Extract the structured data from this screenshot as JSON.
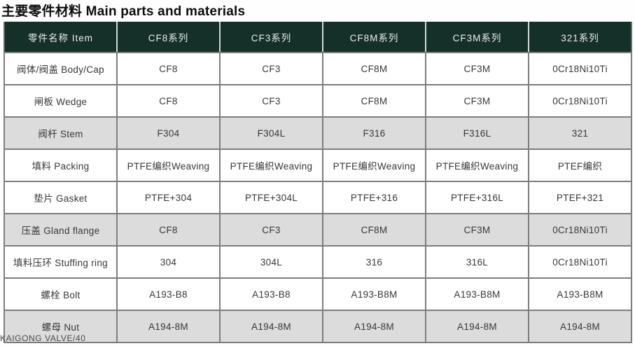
{
  "page": {
    "title": "主要零件材料 Main parts and materials",
    "footer": "KAIGONG VALVE/40"
  },
  "colors": {
    "header_bg": "#143029",
    "header_text": "#ececec",
    "shaded_row_bg": "#dcdcdc",
    "row_bg": "#ffffff",
    "grid_border": "#7d7d7d",
    "cell_text": "#383838"
  },
  "table": {
    "columns": [
      "零件名称 Item",
      "CF8系列",
      "CF3系列",
      "CF8M系列",
      "CF3M系列",
      "321系列"
    ],
    "rows": [
      {
        "item": "阀体/阀盖 Body/Cap",
        "values": [
          "CF8",
          "CF3",
          "CF8M",
          "CF3M",
          "0Cr18Ni10Ti"
        ],
        "shaded": false
      },
      {
        "item": "闸板 Wedge",
        "values": [
          "CF8",
          "CF3",
          "CF8M",
          "CF3M",
          "0Cr18Ni10Ti"
        ],
        "shaded": false
      },
      {
        "item": "阀杆 Stem",
        "values": [
          "F304",
          "F304L",
          "F316",
          "F316L",
          "321"
        ],
        "shaded": true
      },
      {
        "item": "填料 Packing",
        "values": [
          "PTFE编织Weaving",
          "PTFE编织Weaving",
          "PTFE编织Weaving",
          "PTFE编织Weaving",
          "PTEF编织"
        ],
        "shaded": false
      },
      {
        "item": "垫片 Gasket",
        "values": [
          "PTFE+304",
          "PTFE+304L",
          "PTFE+316",
          "PTFE+316L",
          "PTEF+321"
        ],
        "shaded": false
      },
      {
        "item": "压盖 Gland flange",
        "values": [
          "CF8",
          "CF3",
          "CF8M",
          "CF3M",
          "0Cr18Ni10Ti"
        ],
        "shaded": true
      },
      {
        "item": "填料压环 Stuffing ring",
        "values": [
          "304",
          "304L",
          "316",
          "316L",
          "0Cr18Ni10Ti"
        ],
        "shaded": false
      },
      {
        "item": "螺栓 Bolt",
        "values": [
          "A193-B8",
          "A193-B8",
          "A193-B8M",
          "A193-B8M",
          "A193-B8M"
        ],
        "shaded": false
      },
      {
        "item": "螺母 Nut",
        "values": [
          "A194-8M",
          "A194-8M",
          "A194-8M",
          "A194-8M",
          "A194-8M"
        ],
        "shaded": true
      }
    ]
  }
}
